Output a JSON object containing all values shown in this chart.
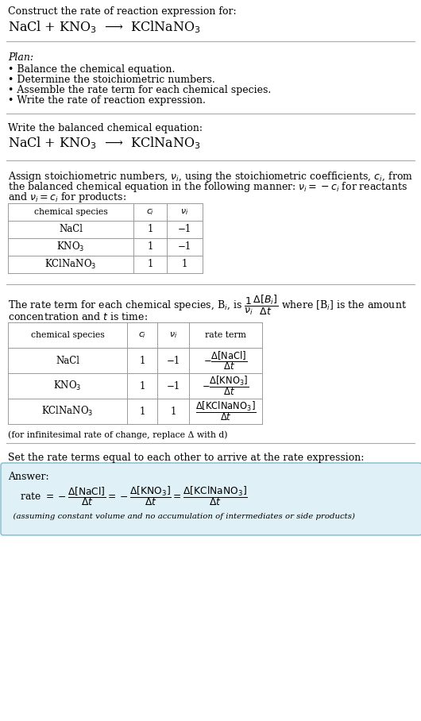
{
  "bg_color": "#ffffff",
  "text_color": "#000000",
  "line_color": "#aaaaaa",
  "answer_box_bg": "#dff0f7",
  "answer_box_border": "#7bbccc",
  "section1_title": "Construct the rate of reaction expression for:",
  "section1_equation": "NaCl + KNO$_3$  ⟶  KClNaNO$_3$",
  "plan_title": "Plan:",
  "plan_items": [
    "• Balance the chemical equation.",
    "• Determine the stoichiometric numbers.",
    "• Assemble the rate term for each chemical species.",
    "• Write the rate of reaction expression."
  ],
  "section2_title": "Write the balanced chemical equation:",
  "section2_equation": "NaCl + KNO$_3$  ⟶  KClNaNO$_3$",
  "section3_line1": "Assign stoichiometric numbers, $\\nu_i$, using the stoichiometric coefficients, $c_i$, from",
  "section3_line2": "the balanced chemical equation in the following manner: $\\nu_i = -c_i$ for reactants",
  "section3_line3": "and $\\nu_i = c_i$ for products:",
  "table1_headers": [
    "chemical species",
    "$c_i$",
    "$\\nu_i$"
  ],
  "table1_rows": [
    [
      "NaCl",
      "1",
      "−1"
    ],
    [
      "KNO$_3$",
      "1",
      "−1"
    ],
    [
      "KClNaNO$_3$",
      "1",
      "1"
    ]
  ],
  "section4_line1": "The rate term for each chemical species, B$_i$, is $\\dfrac{1}{\\nu_i}\\dfrac{\\Delta[B_i]}{\\Delta t}$ where [B$_i$] is the amount",
  "section4_line2": "concentration and $t$ is time:",
  "table2_headers": [
    "chemical species",
    "$c_i$",
    "$\\nu_i$",
    "rate term"
  ],
  "table2_rows": [
    [
      "NaCl",
      "1",
      "−1",
      "$-\\dfrac{\\Delta[\\mathrm{NaCl}]}{\\Delta t}$"
    ],
    [
      "KNO$_3$",
      "1",
      "−1",
      "$-\\dfrac{\\Delta[\\mathrm{KNO_3}]}{\\Delta t}$"
    ],
    [
      "KClNaNO$_3$",
      "1",
      "1",
      "$\\dfrac{\\Delta[\\mathrm{KClNaNO_3}]}{\\Delta t}$"
    ]
  ],
  "infinitesimal_note": "(for infinitesimal rate of change, replace Δ with d)",
  "section5_intro": "Set the rate terms equal to each other to arrive at the rate expression:",
  "answer_label": "Answer:",
  "answer_equation": "  rate $= -\\dfrac{\\Delta[\\mathrm{NaCl}]}{\\Delta t} = -\\dfrac{\\Delta[\\mathrm{KNO_3}]}{\\Delta t} = \\dfrac{\\Delta[\\mathrm{KClNaNO_3}]}{\\Delta t}$",
  "answer_note": "  (assuming constant volume and no accumulation of intermediates or side products)"
}
